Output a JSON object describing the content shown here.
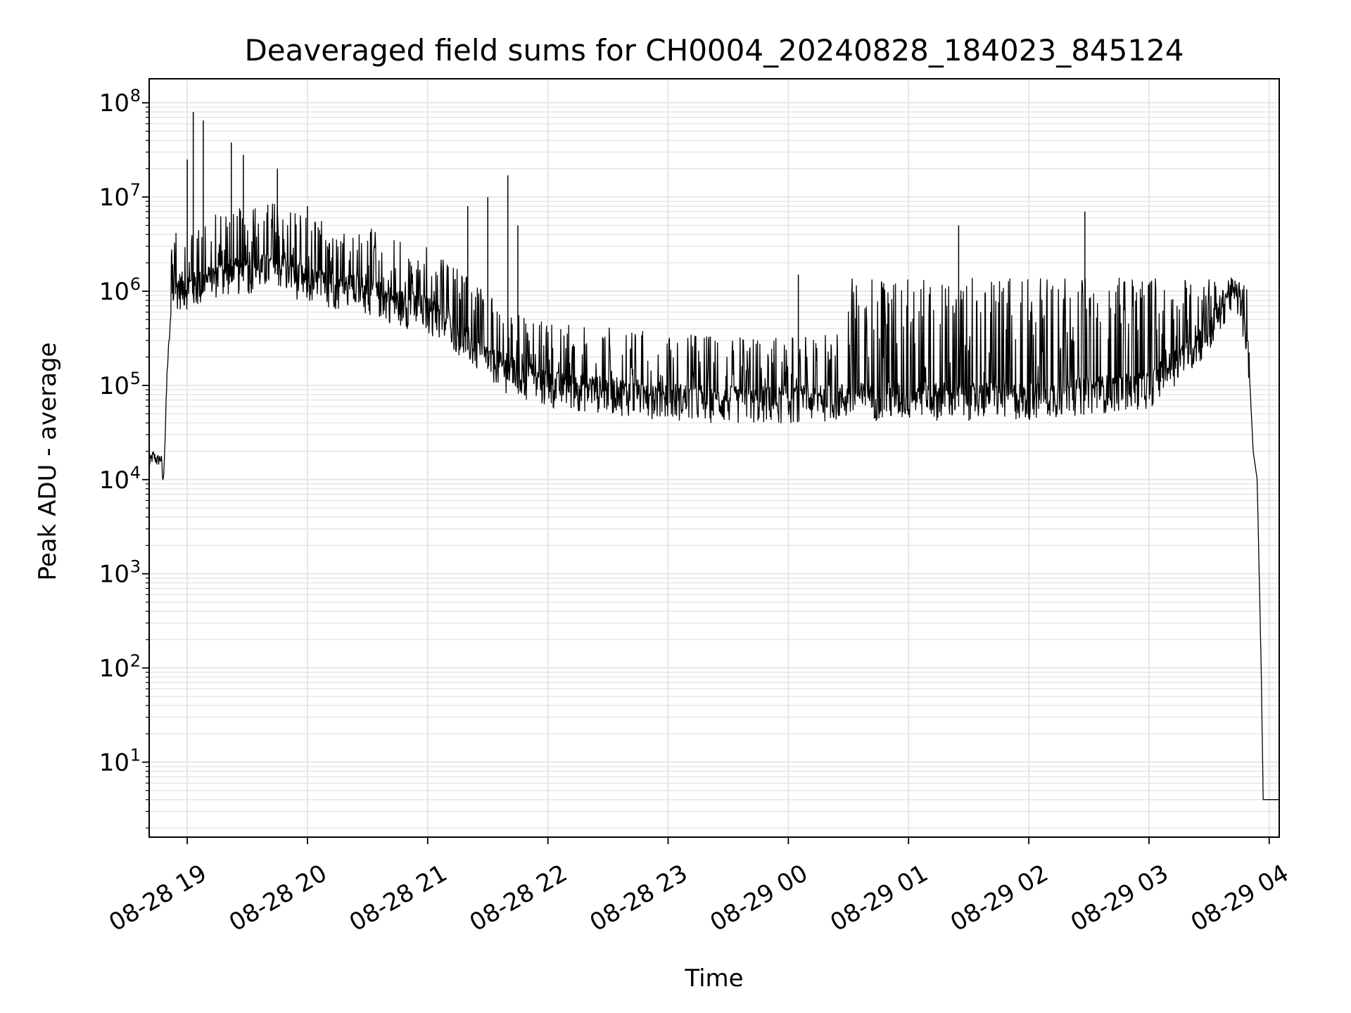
{
  "chart_data": {
    "type": "line",
    "title": "Deaveraged field sums for CH0004_20240828_184023_845124",
    "xlabel": "Time",
    "ylabel": "Peak ADU - average",
    "yscale": "log",
    "ylim": [
      1.6,
      180000000
    ],
    "xlim": [
      "2024-08-28 18:41",
      "2024-08-29 04:05"
    ],
    "grid": true,
    "legend": "none",
    "line_color": "#000000",
    "grid_color": "#e6e6e6",
    "x_ticks": [
      {
        "t": "2024-08-28 19:00",
        "label": "08-28 19"
      },
      {
        "t": "2024-08-28 20:00",
        "label": "08-28 20"
      },
      {
        "t": "2024-08-28 21:00",
        "label": "08-28 21"
      },
      {
        "t": "2024-08-28 22:00",
        "label": "08-28 22"
      },
      {
        "t": "2024-08-28 23:00",
        "label": "08-28 23"
      },
      {
        "t": "2024-08-29 00:00",
        "label": "08-29 00"
      },
      {
        "t": "2024-08-29 01:00",
        "label": "08-29 01"
      },
      {
        "t": "2024-08-29 02:00",
        "label": "08-29 02"
      },
      {
        "t": "2024-08-29 03:00",
        "label": "08-29 03"
      },
      {
        "t": "2024-08-29 04:00",
        "label": "08-29 04"
      }
    ],
    "y_ticks": [
      {
        "value": 10,
        "base": "10",
        "exp": "1"
      },
      {
        "value": 100,
        "base": "10",
        "exp": "2"
      },
      {
        "value": 1000,
        "base": "10",
        "exp": "3"
      },
      {
        "value": 10000,
        "base": "10",
        "exp": "4"
      },
      {
        "value": 100000,
        "base": "10",
        "exp": "5"
      },
      {
        "value": 1000000,
        "base": "10",
        "exp": "6"
      },
      {
        "value": 10000000,
        "base": "10",
        "exp": "7"
      },
      {
        "value": 100000000,
        "base": "10",
        "exp": "8"
      }
    ],
    "series": [
      {
        "points": [
          [
            "2024-08-28 18:41",
            15000
          ],
          [
            "2024-08-28 18:43",
            18000
          ],
          [
            "2024-08-28 18:45",
            16000
          ],
          [
            "2024-08-28 18:47",
            17000
          ],
          [
            "2024-08-28 18:48",
            9000
          ],
          [
            "2024-08-28 18:49",
            30000
          ],
          [
            "2024-08-28 18:50",
            150000
          ],
          [
            "2024-08-28 18:52",
            600000
          ],
          [
            "2024-08-28 18:55",
            900000
          ],
          [
            "2024-08-28 19:05",
            900000
          ],
          [
            "2024-08-28 19:15",
            1200000
          ],
          [
            "2024-08-28 19:30",
            1300000
          ],
          [
            "2024-08-28 19:45",
            1500000
          ],
          [
            "2024-08-28 20:00",
            1000000
          ],
          [
            "2024-08-28 20:15",
            900000
          ],
          [
            "2024-08-28 20:30",
            800000
          ],
          [
            "2024-08-28 20:45",
            600000
          ],
          [
            "2024-08-28 21:00",
            500000
          ],
          [
            "2024-08-28 21:15",
            300000
          ],
          [
            "2024-08-28 21:30",
            150000
          ],
          [
            "2024-08-28 21:45",
            100000
          ],
          [
            "2024-08-28 22:00",
            80000
          ],
          [
            "2024-08-28 22:30",
            70000
          ],
          [
            "2024-08-28 23:00",
            60000
          ],
          [
            "2024-08-28 23:30",
            55000
          ],
          [
            "2024-08-29 00:00",
            55000
          ],
          [
            "2024-08-29 00:30",
            60000
          ],
          [
            "2024-08-29 01:00",
            60000
          ],
          [
            "2024-08-29 02:00",
            60000
          ],
          [
            "2024-08-29 03:00",
            80000
          ],
          [
            "2024-08-29 03:30",
            300000
          ],
          [
            "2024-08-29 03:40",
            800000
          ],
          [
            "2024-08-29 03:45",
            700000
          ],
          [
            "2024-08-29 03:50",
            150000
          ],
          [
            "2024-08-29 03:52",
            20000
          ],
          [
            "2024-08-29 03:54",
            10000
          ],
          [
            "2024-08-29 03:56",
            100
          ],
          [
            "2024-08-29 03:57",
            4
          ],
          [
            "2024-08-29 04:05",
            4
          ]
        ]
      }
    ],
    "spikes": [
      [
        "2024-08-28 19:03",
        80000000
      ],
      [
        "2024-08-28 19:08",
        65000000
      ],
      [
        "2024-08-28 19:00",
        25000000
      ],
      [
        "2024-08-28 19:22",
        38000000
      ],
      [
        "2024-08-28 19:28",
        28000000
      ],
      [
        "2024-08-28 19:45",
        20000000
      ],
      [
        "2024-08-28 20:00",
        8000000
      ],
      [
        "2024-08-28 20:10",
        3000000
      ],
      [
        "2024-08-28 21:20",
        8000000
      ],
      [
        "2024-08-28 21:30",
        10000000
      ],
      [
        "2024-08-28 21:40",
        17000000
      ],
      [
        "2024-08-28 21:45",
        5000000
      ],
      [
        "2024-08-29 01:25",
        5000000
      ],
      [
        "2024-08-29 02:28",
        7000000
      ],
      [
        "2024-08-29 00:05",
        1500000
      ]
    ]
  }
}
